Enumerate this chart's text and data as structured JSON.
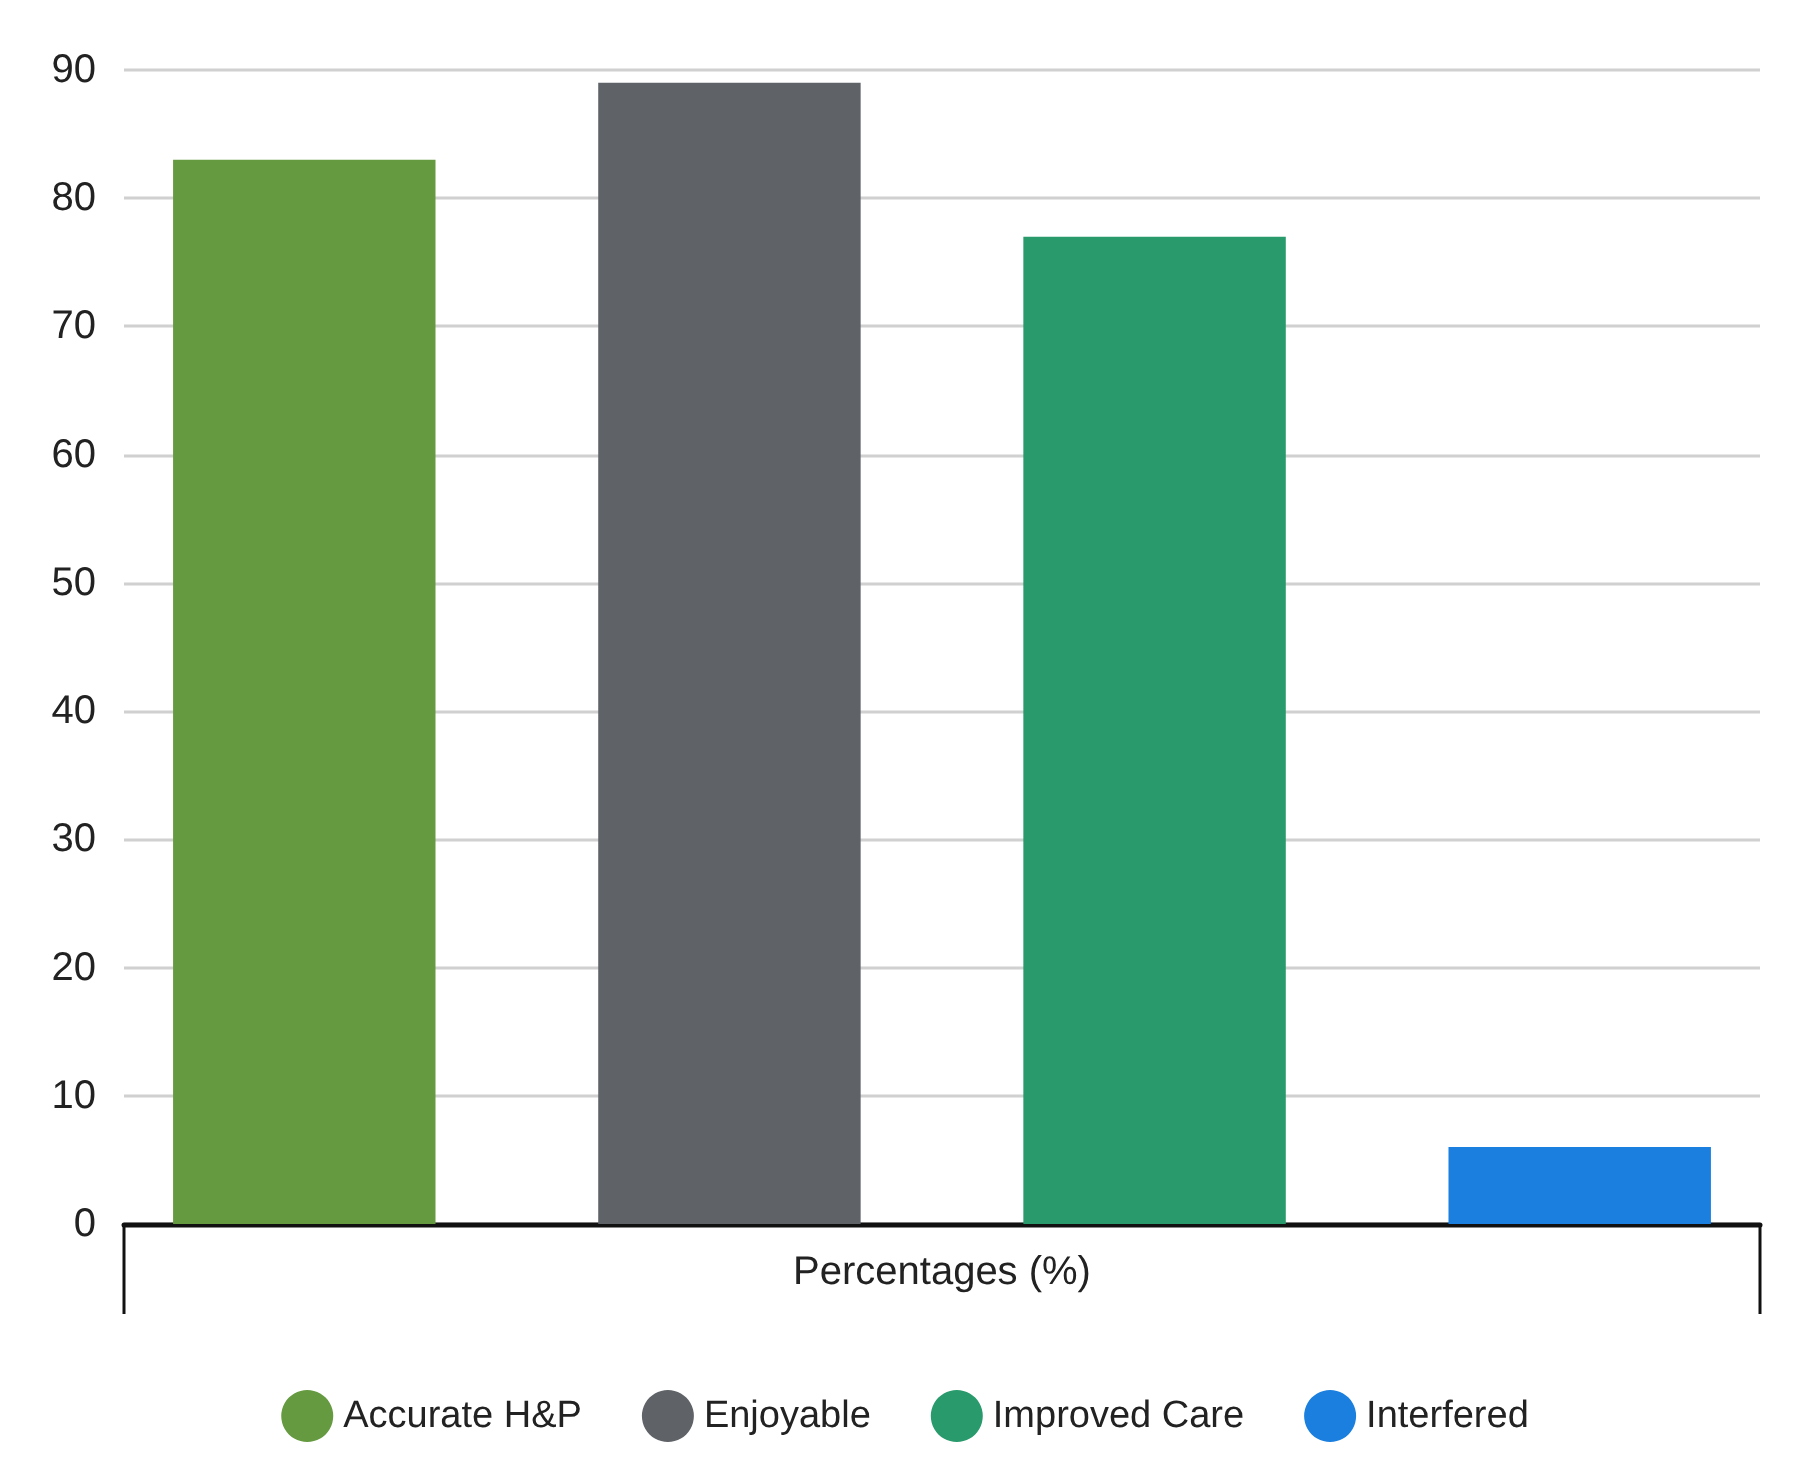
{
  "chart_data": {
    "type": "bar",
    "categories": [
      "Percentages (%)"
    ],
    "series": [
      {
        "name": "Accurate H&P",
        "color": "#659a41",
        "values": [
          83
        ]
      },
      {
        "name": "Enjoyable",
        "color": "#5f6368",
        "values": [
          89
        ]
      },
      {
        "name": "Improved Care",
        "color": "#289a6b",
        "values": [
          77
        ]
      },
      {
        "name": "Interfered",
        "color": "#1a7fde",
        "values": [
          6
        ]
      }
    ],
    "ylim": [
      0,
      90
    ],
    "yticks": [
      0,
      10,
      20,
      30,
      40,
      50,
      60,
      70,
      80,
      90
    ],
    "grid": "y",
    "legend": "bottom"
  }
}
